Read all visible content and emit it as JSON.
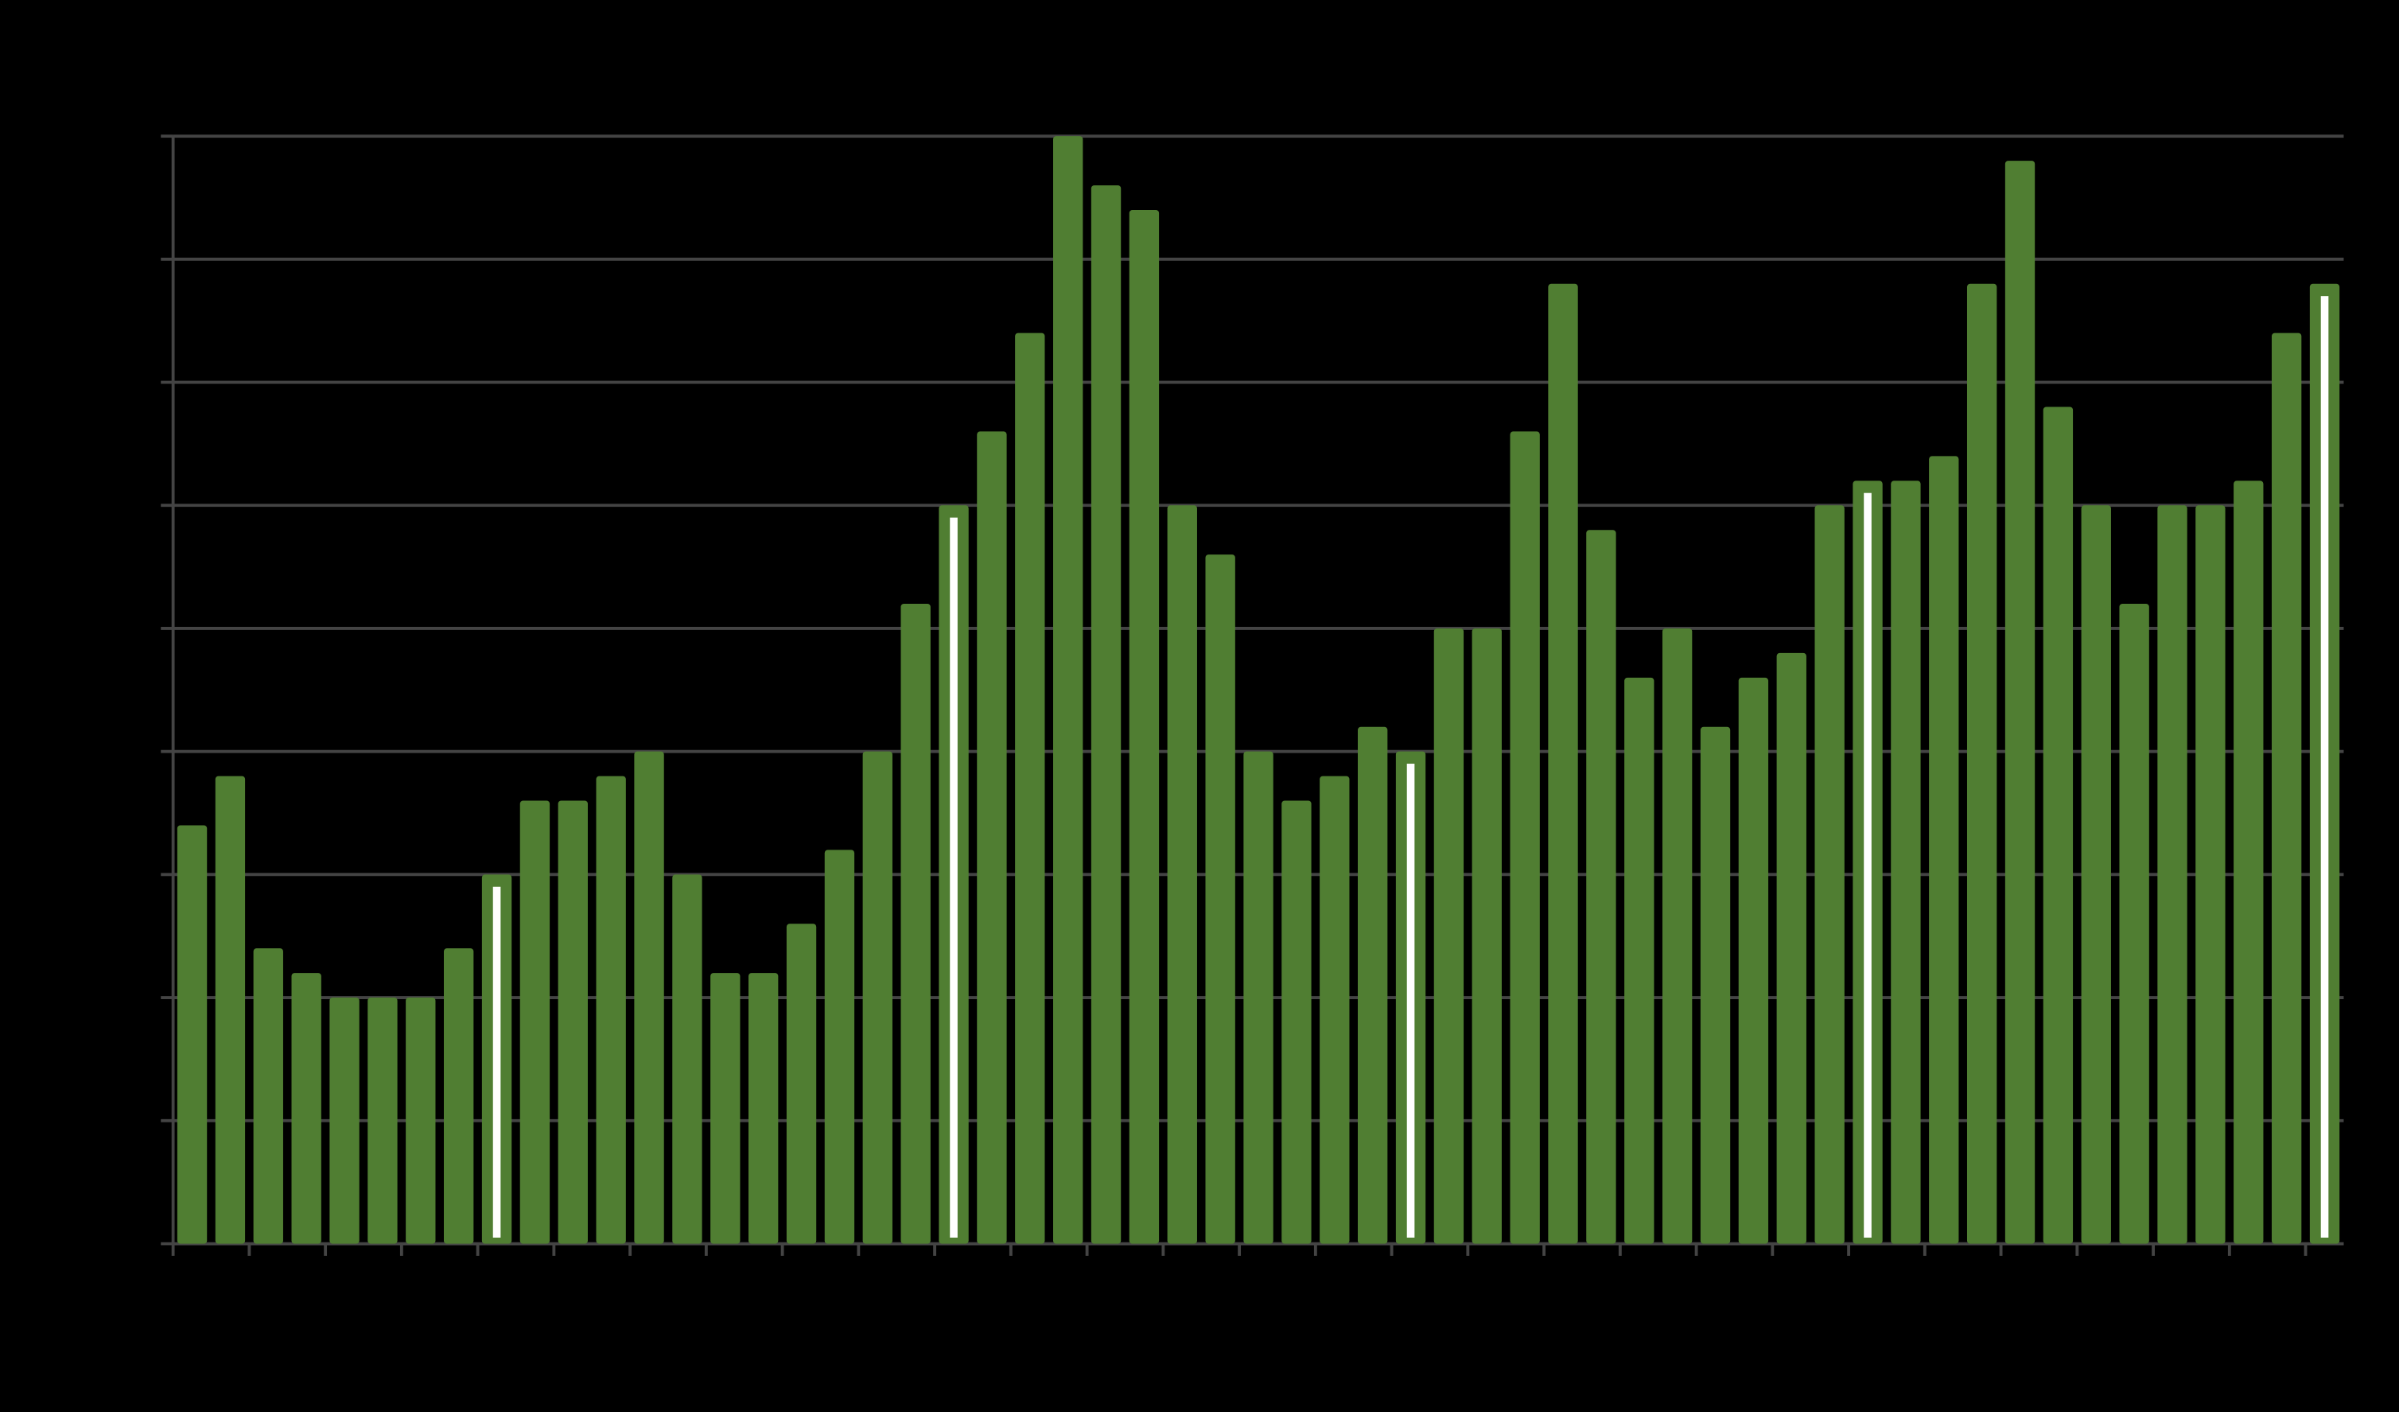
{
  "chart_data": {
    "type": "bar",
    "categories": [
      null,
      null,
      null,
      null,
      null,
      null,
      null,
      null,
      null,
      null,
      null,
      null,
      null,
      null,
      null,
      null,
      null,
      null,
      null,
      null,
      null,
      null,
      null,
      null,
      null,
      null,
      null,
      null,
      null,
      null,
      null,
      null,
      null,
      null,
      null,
      null,
      null,
      null,
      null,
      null,
      null,
      null,
      null,
      null,
      null,
      null,
      null,
      null,
      null,
      null,
      null,
      null,
      null,
      null,
      null,
      null,
      null
    ],
    "values": [
      17,
      19,
      12,
      11,
      10,
      10,
      10,
      12,
      15,
      18,
      18,
      19,
      20,
      15,
      11,
      11,
      13,
      16,
      20,
      26,
      30,
      33,
      37,
      45,
      43,
      42,
      30,
      28,
      20,
      18,
      19,
      21,
      20,
      25,
      25,
      33,
      39,
      29,
      23,
      25,
      21,
      23,
      24,
      30,
      31,
      31,
      32,
      39,
      44,
      34,
      30,
      26,
      30,
      30,
      31,
      37,
      39
    ],
    "color": "#507e32",
    "highlighted": [
      8,
      20,
      32,
      44,
      56
    ],
    "highlight_color": "#ffffff",
    "ylim": [
      0,
      45
    ],
    "yticks": [
      0,
      5,
      10,
      15,
      20,
      25,
      30,
      35,
      40,
      45
    ],
    "grid": true
  }
}
